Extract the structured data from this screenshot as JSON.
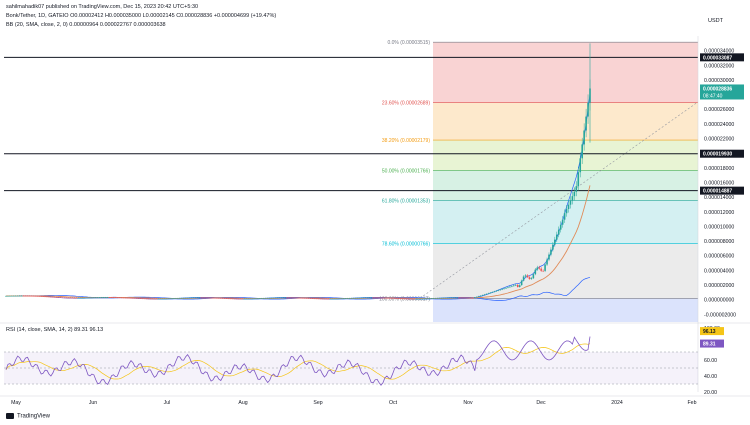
{
  "header": {
    "published": "sahilmahadik07 published on TradingView.com, Dec 15, 2023 20:42 UTC+5:30",
    "symbol_line": "Bonk/Tether, 1D, GATEIO  O0.00002412 H0.000035000 L0.00002145 C0.000028836 +0.000004699 (+19.47%)",
    "bb_line": "BB (20, SMA, close, 2, 0)  0.00000964  0.000022767  0.000003638",
    "rsi_line": "RSI (14, close, SMA, 14, 2)  89.31  96.13"
  },
  "currency_label": "USDT",
  "footer": {
    "brand": "TradingView"
  },
  "colors": {
    "up": "#26a69a",
    "down": "#ef5350",
    "bb_upper": "#2962ff",
    "bb_basis": "#e08c5a",
    "rsi": "#7e57c2",
    "rsi_ma": "#f5c518"
  },
  "chart_data": {
    "type": "candlestick",
    "price_axis": {
      "range": [
        -2.5e-06,
        3.6e-05
      ],
      "ticks": [
        "0.000034000",
        "0.000032000",
        "0.000030000",
        "0.000026000",
        "0.000024000",
        "0.000022000",
        "0.000018000",
        "0.000016000",
        "0.000014000",
        "0.000012000",
        "0.000010000",
        "0.000008000",
        "0.000006000",
        "0.000004000",
        "0.000002000",
        "0.000000000",
        "-0.000002000"
      ]
    },
    "time_axis": [
      "May",
      "Jun",
      "Jul",
      "Aug",
      "Sep",
      "Oct",
      "Nov",
      "Dec",
      "2024",
      "Feb"
    ],
    "fib_levels": [
      {
        "label": "0.0% (0.00003515)",
        "price": 3.515e-05,
        "color": "#787b86"
      },
      {
        "label": "23.60% (0.00002689)",
        "price": 2.689e-05,
        "color": "#e0524f"
      },
      {
        "label": "38.20% (0.00002179)",
        "price": 2.179e-05,
        "color": "#f39c12"
      },
      {
        "label": "50.00% (0.00001766)",
        "price": 1.766e-05,
        "color": "#4caf50"
      },
      {
        "label": "61.80% (0.00001353)",
        "price": 1.353e-05,
        "color": "#26a69a"
      },
      {
        "label": "78.60% (0.00000766)",
        "price": 7.66e-06,
        "color": "#00bcd4"
      },
      {
        "label": "100.00% (0.00000017)",
        "price": 1.7e-07,
        "color": "#787b86"
      }
    ],
    "horizontal_lines": [
      {
        "label": "0.000033087",
        "price": 3.3087e-05
      },
      {
        "label": "0.000019930",
        "price": 1.993e-05
      },
      {
        "label": "0.000014887",
        "price": 1.4887e-05
      }
    ],
    "last_price": {
      "label": "0.000028836",
      "countdown": "08:47:40",
      "price": 2.8836e-05
    },
    "rsi_axis": {
      "range": [
        20,
        100
      ],
      "ticks": [
        "100.00",
        "80.00",
        "60.00",
        "40.00",
        "20.00"
      ]
    },
    "rsi_level_tags": [
      "96.13",
      "89.31"
    ]
  }
}
